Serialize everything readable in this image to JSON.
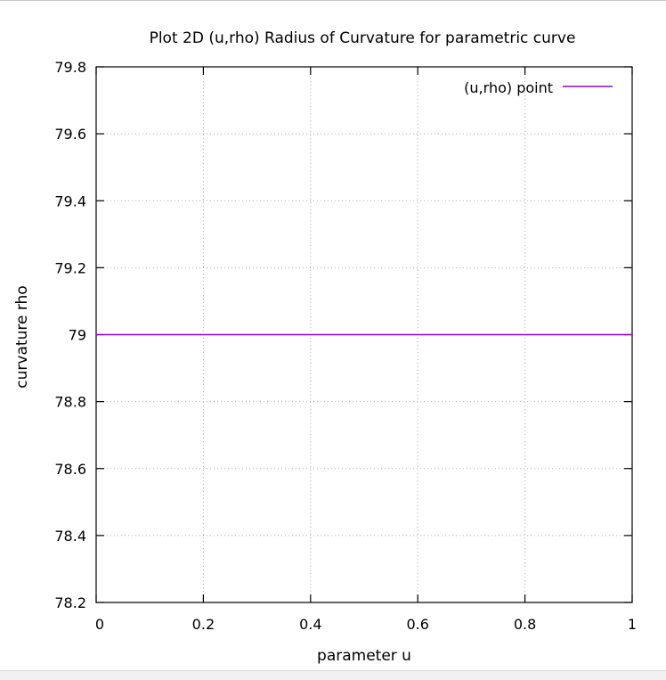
{
  "chart_data": {
    "type": "line",
    "title": "Plot 2D (u,rho) Radius of Curvature for parametric curve",
    "xlabel": "parameter u",
    "ylabel": "curvature rho",
    "xlim": [
      0,
      1
    ],
    "ylim": [
      78.2,
      79.8
    ],
    "x_ticks": [
      "0",
      "0.2",
      "0.4",
      "0.6",
      "0.8",
      "1"
    ],
    "y_ticks": [
      "78.2",
      "78.4",
      "78.6",
      "78.8",
      "79",
      "79.2",
      "79.4",
      "79.6",
      "79.8"
    ],
    "grid": true,
    "legend_position": "top-right",
    "series": [
      {
        "name": "(u,rho) point",
        "color": "#9400d3",
        "x": [
          0,
          1
        ],
        "y": [
          79,
          79
        ]
      }
    ]
  }
}
